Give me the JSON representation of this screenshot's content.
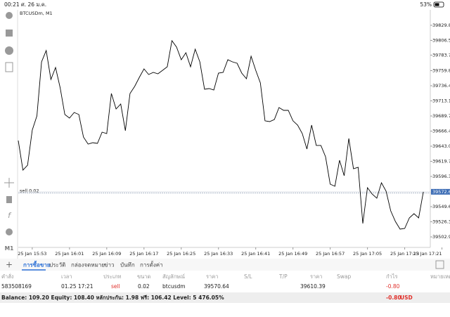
{
  "status_bar": {
    "time": "00:21",
    "date": "ศ. 26 ม.ค.",
    "battery": "53%"
  },
  "toolbar": {
    "timeframe": "M1"
  },
  "chart_data": {
    "type": "line",
    "title": "BTCUSDm, M1",
    "x": [
      -3,
      -2,
      -1,
      0,
      1,
      2,
      3,
      4,
      5,
      6,
      7,
      8,
      9,
      10,
      11,
      12,
      13,
      14,
      15,
      16,
      17,
      18,
      19,
      20,
      21,
      22,
      23,
      24,
      25,
      26,
      27,
      28,
      29,
      30,
      31,
      32,
      33,
      34,
      35,
      36,
      37,
      38,
      39,
      40,
      41,
      42,
      43,
      44,
      45,
      46,
      47,
      48,
      49,
      50,
      51,
      52,
      53,
      54,
      55,
      56,
      57,
      58,
      59,
      60,
      61,
      62,
      63,
      64,
      65,
      66,
      67,
      68,
      69,
      70,
      71,
      72,
      73,
      74,
      75,
      76,
      77,
      78,
      79,
      80,
      81,
      82,
      83,
      84
    ],
    "series": [
      {
        "name": "BTCUSDm",
        "color": "#000000",
        "values": [
          39651.7,
          39606.1,
          39613.7,
          39668.0,
          39689.8,
          39773.4,
          39790.8,
          39746.2,
          39764.7,
          39733.2,
          39692.0,
          39686.5,
          39695.2,
          39692.0,
          39657.2,
          39646.3,
          39648.5,
          39647.4,
          39664.8,
          39662.6,
          39724.5,
          39700.6,
          39708.2,
          39667.0,
          39724.5,
          39735.4,
          39749.5,
          39762.5,
          39753.8,
          39757.1,
          39754.9,
          39760.3,
          39765.8,
          39806.0,
          39796.2,
          39776.6,
          39787.5,
          39765.8,
          39792.9,
          39773.4,
          39731.0,
          39732.1,
          39729.9,
          39756.0,
          39757.1,
          39776.6,
          39773.4,
          39771.2,
          39756.0,
          39747.3,
          39782.0,
          39760.3,
          39740.8,
          39682.2,
          39681.1,
          39684.3,
          39702.8,
          39698.4,
          39698.4,
          39682.2,
          39675.6,
          39662.6,
          39638.7,
          39675.6,
          39644.2,
          39644.2,
          39626.8,
          39584.4,
          39581.2,
          39621.3,
          39597.4,
          39655.0,
          39608.3,
          39610.5,
          39523.6,
          39579.0,
          39569.2,
          39562.7,
          39586.6,
          39573.6,
          39543.2,
          39526.9,
          39514.9,
          39516.0,
          39532.3,
          39538.8,
          39532.3,
          39572.6
        ]
      }
    ],
    "xlim": [
      -3,
      85.5
    ],
    "xticks": [
      {
        "value": 0,
        "label": "25 Jan 15:53"
      },
      {
        "value": 8,
        "label": "25 Jan 16:01"
      },
      {
        "value": 16,
        "label": "25 Jan 16:09"
      },
      {
        "value": 24,
        "label": "25 Jan 16:17"
      },
      {
        "value": 32,
        "label": "25 Jan 16:25"
      },
      {
        "value": 40,
        "label": "25 Jan 16:33"
      },
      {
        "value": 48,
        "label": "25 Jan 16:41"
      },
      {
        "value": 56,
        "label": "25 Jan 16:49"
      },
      {
        "value": 64,
        "label": "25 Jan 16:57"
      },
      {
        "value": 72,
        "label": "25 Jan 17:05"
      },
      {
        "value": 80,
        "label": "25 Jan 17:13"
      },
      {
        "value": 88,
        "label": "25 Jan 17:21"
      }
    ],
    "ylim": [
      39486.7,
      39853.7
    ],
    "yticks": [
      {
        "value": 39829.85,
        "label": "39829.85"
      },
      {
        "value": 39806.5,
        "label": "39806.50"
      },
      {
        "value": 39783.75,
        "label": "39783.75"
      },
      {
        "value": 39759.8,
        "label": "39759.80"
      },
      {
        "value": 39736.45,
        "label": "39736.45"
      },
      {
        "value": 39713.1,
        "label": "39713.10"
      },
      {
        "value": 39689.75,
        "label": "39689.75"
      },
      {
        "value": 39666.4,
        "label": "39666.40"
      },
      {
        "value": 39643.05,
        "label": "39643.05"
      },
      {
        "value": 39619.7,
        "label": "39619.70"
      },
      {
        "value": 39596.35,
        "label": "39596.35"
      },
      {
        "value": 39549.65,
        "label": "39549.65"
      },
      {
        "value": 39526.3,
        "label": "39526.30"
      },
      {
        "value": 39502.95,
        "label": "39502.95"
      }
    ],
    "current_price": {
      "value": 39572.63,
      "label": "39572.63"
    },
    "order_line": {
      "value": 39570.64,
      "label": "sell 0.02"
    }
  },
  "tabs": [
    "การซื้อขาย",
    "ประวัติ",
    "กล่องจดหมาย",
    "ข่าว",
    "บันทึก",
    "การตั้งค่า"
  ],
  "table": {
    "headers": [
      "คำสั่ง",
      "เวลา",
      "ประเภท",
      "ขนาด",
      "สัญลักษณ์",
      "ราคา",
      "S/L",
      "T/P",
      "ราคา",
      "Swap",
      "กำไร",
      "หมายเหตุ"
    ],
    "row": {
      "order": "583508169",
      "time": "01.25 17:21",
      "type": "sell",
      "volume": "0.02",
      "symbol": "btcusdm",
      "price": "39570.64",
      "current_price": "39610.39",
      "profit": "-0.80"
    }
  },
  "balance": {
    "text": "Balance: 109.20 Equity: 108.40 หลักประกัน: 1.98 ฟรี: 106.42 Level: 5 476.05%",
    "profit": "-0.80",
    "currency": "USD"
  }
}
